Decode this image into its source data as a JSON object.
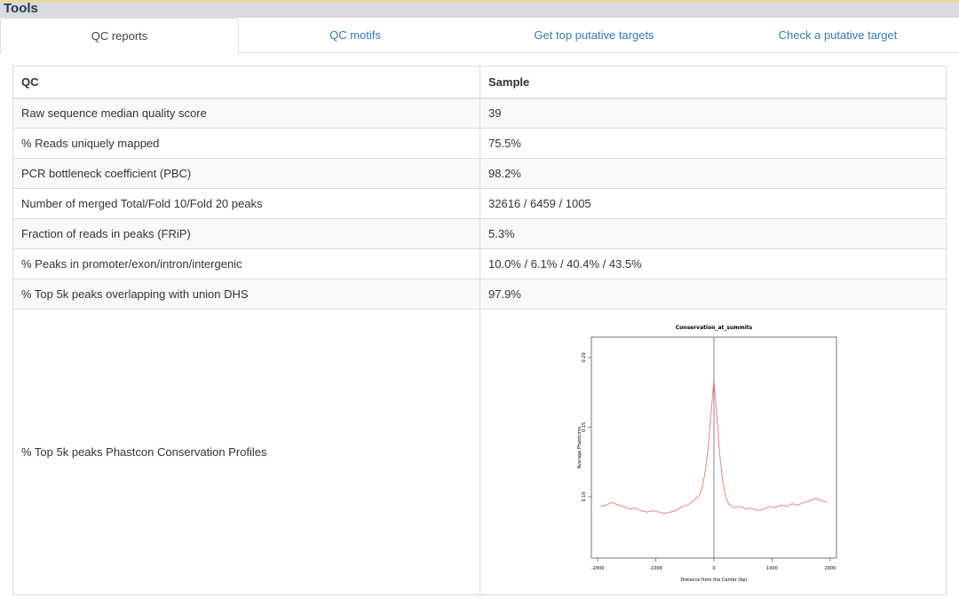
{
  "header": {
    "title": "Tools"
  },
  "tabs": [
    "QC reports",
    "QC motifs",
    "Get top putative targets",
    "Check a putative target"
  ],
  "table": {
    "columns": [
      "QC",
      "Sample"
    ],
    "rows": [
      [
        "Raw sequence median quality score",
        "39"
      ],
      [
        "% Reads uniquely mapped",
        "75.5%"
      ],
      [
        "PCR bottleneck coefficient (PBC)",
        "98.2%"
      ],
      [
        "Number of merged Total/Fold 10/Fold 20 peaks",
        "32616 / 6459 / 1005"
      ],
      [
        "Fraction of reads in peaks (FRiP)",
        "5.3%"
      ],
      [
        "% Peaks in promoter/exon/intron/intergenic",
        "10.0% / 6.1% / 40.4% / 43.5%"
      ],
      [
        "% Top 5k peaks overlapping with union DHS",
        "97.9%"
      ],
      [
        "% Top 5k peaks Phastcon Conservation Profiles"
      ]
    ]
  },
  "chart_data": {
    "type": "line",
    "title": "Conservation_at_summits",
    "x_label": "Distance from the Center (bp)",
    "y_label": "Average Phastcons",
    "x": [
      -1950,
      -1850,
      -1750,
      -1650,
      -1550,
      -1450,
      -1350,
      -1250,
      -1150,
      -1050,
      -950,
      -850,
      -750,
      -650,
      -550,
      -450,
      -350,
      -250,
      -200,
      -150,
      -100,
      -50,
      0,
      50,
      100,
      150,
      200,
      250,
      350,
      450,
      550,
      650,
      750,
      850,
      950,
      1050,
      1150,
      1250,
      1350,
      1450,
      1550,
      1650,
      1750,
      1850,
      1950
    ],
    "values": [
      0.093,
      0.094,
      0.096,
      0.094,
      0.093,
      0.091,
      0.092,
      0.09,
      0.089,
      0.09,
      0.089,
      0.088,
      0.089,
      0.09,
      0.093,
      0.094,
      0.097,
      0.101,
      0.107,
      0.118,
      0.135,
      0.16,
      0.184,
      0.158,
      0.13,
      0.112,
      0.1,
      0.095,
      0.092,
      0.093,
      0.091,
      0.092,
      0.09,
      0.091,
      0.093,
      0.092,
      0.094,
      0.093,
      0.095,
      0.094,
      0.096,
      0.097,
      0.099,
      0.097,
      0.096
    ],
    "color": "#f08080",
    "vline": 0,
    "xlim": [
      -2110,
      2110
    ],
    "ylim": [
      0.056,
      0.2146
    ],
    "xticks": [
      -2000,
      -1000,
      0,
      1000,
      2000
    ],
    "yticks": [
      {
        "value": 0.1,
        "label": "0.10"
      },
      {
        "value": 0.15,
        "label": "0.15"
      },
      {
        "value": 0.2,
        "label": "0.20"
      }
    ]
  }
}
